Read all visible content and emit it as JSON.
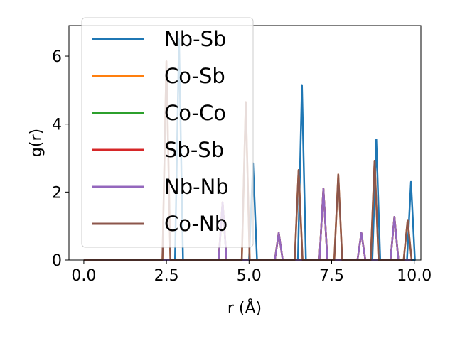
{
  "chart_data": {
    "type": "line",
    "xlabel": "r (Å)",
    "ylabel": "g(r)",
    "xlim": [
      -0.45,
      10.2
    ],
    "ylim": [
      0,
      6.9
    ],
    "xticks": [
      "0.0",
      "2.5",
      "5.0",
      "7.5",
      "10.0"
    ],
    "xtick_values": [
      0,
      2.5,
      5,
      7.5,
      10
    ],
    "yticks": [
      "0",
      "2",
      "4",
      "6"
    ],
    "ytick_values": [
      0,
      2,
      4,
      6
    ],
    "grid": false,
    "legend_position": "upper-left",
    "peak_width": 0.12,
    "series": [
      {
        "name": "Nb-Sb",
        "color": "#1f77b4",
        "peaks": [
          [
            2.88,
            6.5
          ],
          [
            5.12,
            2.85
          ],
          [
            6.6,
            5.15
          ],
          [
            8.85,
            3.55
          ],
          [
            9.9,
            2.3
          ]
        ]
      },
      {
        "name": "Co-Sb",
        "color": "#ff7f0e",
        "peaks": [
          [
            2.5,
            5.85
          ],
          [
            4.2,
            1.7
          ],
          [
            4.9,
            4.65
          ],
          [
            5.9,
            0.8
          ],
          [
            6.5,
            2.65
          ],
          [
            7.25,
            2.1
          ],
          [
            7.7,
            2.52
          ],
          [
            8.4,
            0.8
          ],
          [
            8.8,
            2.92
          ],
          [
            9.4,
            1.27
          ],
          [
            9.8,
            1.18
          ]
        ]
      },
      {
        "name": "Co-Co",
        "color": "#2ca02c",
        "peaks": [
          [
            4.2,
            1.7
          ],
          [
            5.9,
            0.8
          ],
          [
            7.25,
            2.1
          ],
          [
            8.4,
            0.8
          ],
          [
            9.4,
            1.27
          ]
        ]
      },
      {
        "name": "Sb-Sb",
        "color": "#d62728",
        "peaks": [
          [
            4.2,
            1.7
          ],
          [
            5.9,
            0.8
          ],
          [
            7.25,
            2.1
          ],
          [
            8.4,
            0.8
          ],
          [
            9.4,
            1.27
          ]
        ]
      },
      {
        "name": "Nb-Nb",
        "color": "#9467bd",
        "peaks": [
          [
            4.2,
            1.7
          ],
          [
            5.9,
            0.8
          ],
          [
            7.25,
            2.1
          ],
          [
            8.4,
            0.8
          ],
          [
            9.4,
            1.27
          ]
        ]
      },
      {
        "name": "Co-Nb",
        "color": "#8c564b",
        "peaks": [
          [
            2.5,
            5.85
          ],
          [
            4.9,
            4.65
          ],
          [
            6.5,
            2.65
          ],
          [
            7.7,
            2.52
          ],
          [
            8.8,
            2.92
          ],
          [
            9.8,
            1.18
          ]
        ]
      }
    ]
  }
}
